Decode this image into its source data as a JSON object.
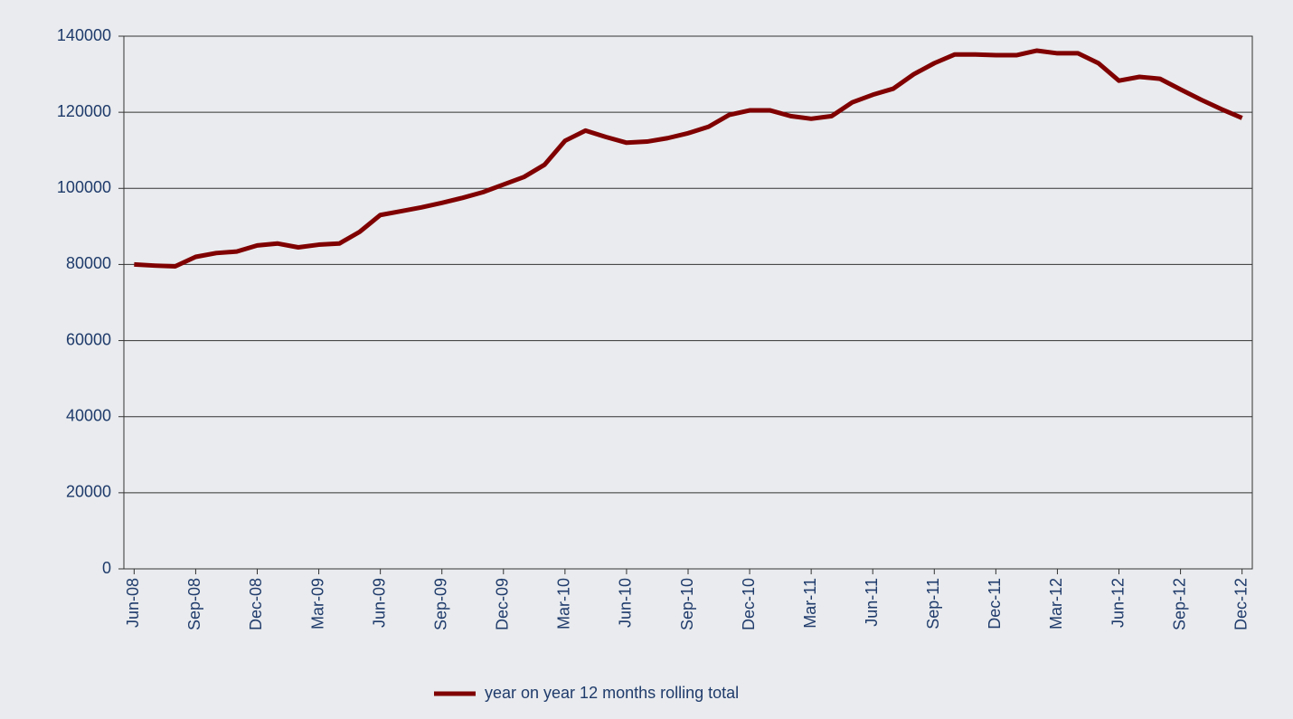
{
  "chart_data": {
    "type": "line",
    "categories": [
      "Jun-08",
      null,
      null,
      "Sep-08",
      null,
      null,
      "Dec-08",
      null,
      null,
      "Mar-09",
      null,
      null,
      "Jun-09",
      null,
      null,
      "Sep-09",
      null,
      null,
      "Dec-09",
      null,
      null,
      "Mar-10",
      null,
      null,
      "Jun-10",
      null,
      null,
      "Sep-10",
      null,
      null,
      "Dec-10",
      null,
      null,
      "Mar-11",
      null,
      null,
      "Jun-11",
      null,
      null,
      "Sep-11",
      null,
      null,
      "Dec-11",
      null,
      null,
      "Mar-12",
      null,
      null,
      "Jun-12",
      null,
      null,
      "Sep-12",
      null,
      null,
      "Dec-12"
    ],
    "series": [
      {
        "name": "year on year 12 months rolling total",
        "color": "#800000",
        "values": [
          80000,
          79700,
          79500,
          82000,
          83000,
          83400,
          85000,
          85500,
          84500,
          85200,
          85500,
          88600,
          93000,
          94000,
          95000,
          96200,
          97500,
          99000,
          101000,
          103000,
          106200,
          112500,
          115200,
          113500,
          112000,
          112300,
          113200,
          114500,
          116200,
          119300,
          120500,
          120500,
          119000,
          118300,
          119000,
          122600,
          124600,
          126200,
          130000,
          132900,
          135200,
          135200,
          135000,
          135000,
          136200,
          135500,
          135500,
          132900,
          128300,
          129300,
          128800,
          126000,
          123300,
          120800,
          118500
        ]
      }
    ],
    "ylim": [
      0,
      140000
    ],
    "yticks": [
      0,
      20000,
      40000,
      60000,
      80000,
      100000,
      120000,
      140000
    ],
    "grid": true,
    "legend": "bottom"
  }
}
